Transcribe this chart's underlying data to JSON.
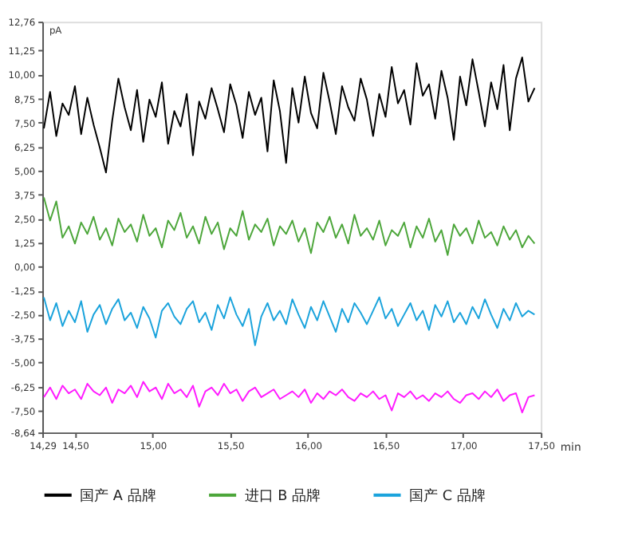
{
  "chart_data": {
    "type": "line",
    "xlabel": "min",
    "ylabel": "pA",
    "grid": false,
    "legend": "bottom",
    "marker": "none",
    "line_style": "solid",
    "x": [
      14.3,
      14.34,
      14.38,
      14.42,
      14.46,
      14.5,
      14.54,
      14.58,
      14.62,
      14.66,
      14.7,
      14.74,
      14.78,
      14.82,
      14.86,
      14.9,
      14.94,
      14.98,
      15.02,
      15.06,
      15.1,
      15.14,
      15.18,
      15.22,
      15.26,
      15.3,
      15.34,
      15.38,
      15.42,
      15.46,
      15.5,
      15.54,
      15.58,
      15.62,
      15.66,
      15.7,
      15.74,
      15.78,
      15.82,
      15.86,
      15.9,
      15.94,
      15.98,
      16.02,
      16.06,
      16.1,
      16.14,
      16.18,
      16.22,
      16.26,
      16.3,
      16.34,
      16.38,
      16.42,
      16.46,
      16.5,
      16.54,
      16.58,
      16.62,
      16.66,
      16.7,
      16.74,
      16.78,
      16.82,
      16.86,
      16.9,
      16.94,
      16.98,
      17.02,
      17.06,
      17.1,
      17.14,
      17.18,
      17.22,
      17.26,
      17.3,
      17.34,
      17.38,
      17.42,
      17.46
    ],
    "xlim": [
      14.29,
      17.5
    ],
    "xticks": [
      {
        "value": 14.29,
        "label": "14,29"
      },
      {
        "value": 14.5,
        "label": "14,50"
      },
      {
        "value": 15.0,
        "label": "15,00"
      },
      {
        "value": 15.5,
        "label": "15,50"
      },
      {
        "value": 16.0,
        "label": "16,00"
      },
      {
        "value": 16.5,
        "label": "16,50"
      },
      {
        "value": 17.0,
        "label": "17,00"
      },
      {
        "value": 17.5,
        "label": "17,50"
      }
    ],
    "ylim": [
      -8.64,
      12.76
    ],
    "yticks": [
      {
        "value": -8.64,
        "label": "-8,64"
      },
      {
        "value": -7.5,
        "label": "-7,50"
      },
      {
        "value": -6.25,
        "label": "-6,25"
      },
      {
        "value": -5.0,
        "label": "-5,00"
      },
      {
        "value": -3.75,
        "label": "-3,75"
      },
      {
        "value": -2.5,
        "label": "-2,50"
      },
      {
        "value": -1.25,
        "label": "-1,25"
      },
      {
        "value": 0,
        "label": "0,00"
      },
      {
        "value": 1.25,
        "label": "1,25"
      },
      {
        "value": 2.5,
        "label": "2,50"
      },
      {
        "value": 3.75,
        "label": "3,75"
      },
      {
        "value": 5.0,
        "label": "5,00"
      },
      {
        "value": 6.25,
        "label": "6,25"
      },
      {
        "value": 7.5,
        "label": "7,50"
      },
      {
        "value": 8.75,
        "label": "8,75"
      },
      {
        "value": 10.0,
        "label": "10,00"
      },
      {
        "value": 11.25,
        "label": "11,25"
      },
      {
        "value": 12.76,
        "label": "12,76"
      }
    ],
    "series": [
      {
        "name": "国产 A 品牌",
        "color": "#000000",
        "values": [
          7.2,
          9.1,
          6.8,
          8.5,
          7.9,
          9.4,
          6.9,
          8.8,
          7.4,
          6.2,
          4.9,
          7.6,
          9.8,
          8.3,
          7.1,
          9.2,
          6.5,
          8.7,
          7.8,
          9.6,
          6.4,
          8.1,
          7.3,
          9.0,
          5.8,
          8.6,
          7.7,
          9.3,
          8.2,
          7.0,
          9.5,
          8.4,
          6.7,
          9.1,
          7.9,
          8.8,
          6.0,
          9.7,
          8.1,
          5.4,
          9.3,
          7.5,
          9.9,
          8.0,
          7.2,
          10.1,
          8.6,
          6.9,
          9.4,
          8.3,
          7.6,
          9.8,
          8.7,
          6.8,
          9.0,
          7.8,
          10.4,
          8.5,
          9.2,
          7.4,
          10.6,
          8.9,
          9.5,
          7.7,
          10.2,
          8.8,
          6.6,
          9.9,
          8.4,
          10.8,
          9.1,
          7.3,
          9.6,
          8.2,
          10.5,
          7.1,
          9.8,
          10.9,
          8.6,
          9.3
        ]
      },
      {
        "name": "进口 B 品牌",
        "color": "#4ca63a",
        "values": [
          3.6,
          2.4,
          3.4,
          1.5,
          2.1,
          1.2,
          2.3,
          1.7,
          2.6,
          1.4,
          2.0,
          1.1,
          2.5,
          1.8,
          2.2,
          1.3,
          2.7,
          1.6,
          2.0,
          1.0,
          2.4,
          1.9,
          2.8,
          1.5,
          2.1,
          1.2,
          2.6,
          1.7,
          2.3,
          0.9,
          2.0,
          1.6,
          2.9,
          1.4,
          2.2,
          1.8,
          2.5,
          1.1,
          2.1,
          1.7,
          2.4,
          1.3,
          2.0,
          0.7,
          2.3,
          1.8,
          2.6,
          1.5,
          2.2,
          1.2,
          2.7,
          1.6,
          2.0,
          1.4,
          2.4,
          1.1,
          1.9,
          1.6,
          2.3,
          1.0,
          2.1,
          1.5,
          2.5,
          1.3,
          1.9,
          0.6,
          2.2,
          1.6,
          2.0,
          1.2,
          2.4,
          1.5,
          1.8,
          1.1,
          2.1,
          1.4,
          1.9,
          1.0,
          1.6,
          1.2
        ]
      },
      {
        "name": "国产 C 品牌",
        "color": "#1aa3dc",
        "values": [
          -1.6,
          -2.8,
          -1.9,
          -3.1,
          -2.3,
          -2.9,
          -1.8,
          -3.4,
          -2.5,
          -2.0,
          -3.0,
          -2.2,
          -1.7,
          -2.8,
          -2.4,
          -3.2,
          -2.1,
          -2.7,
          -3.7,
          -2.3,
          -1.9,
          -2.6,
          -3.0,
          -2.2,
          -1.8,
          -2.9,
          -2.4,
          -3.3,
          -2.0,
          -2.7,
          -1.6,
          -2.5,
          -3.1,
          -2.2,
          -4.1,
          -2.6,
          -1.9,
          -2.8,
          -2.3,
          -3.0,
          -1.7,
          -2.5,
          -3.2,
          -2.1,
          -2.8,
          -1.8,
          -2.6,
          -3.4,
          -2.2,
          -2.9,
          -1.9,
          -2.4,
          -3.0,
          -2.3,
          -1.6,
          -2.7,
          -2.2,
          -3.1,
          -2.5,
          -1.9,
          -2.8,
          -2.3,
          -3.3,
          -2.0,
          -2.6,
          -1.8,
          -2.9,
          -2.4,
          -3.0,
          -2.1,
          -2.7,
          -1.7,
          -2.5,
          -3.2,
          -2.2,
          -2.8,
          -1.9,
          -2.6,
          -2.3,
          -2.5
        ]
      },
      {
        "color": "#ff1aff",
        "values": [
          -6.8,
          -6.3,
          -6.9,
          -6.2,
          -6.6,
          -6.4,
          -6.9,
          -6.1,
          -6.5,
          -6.7,
          -6.3,
          -7.1,
          -6.4,
          -6.6,
          -6.2,
          -6.8,
          -6.0,
          -6.5,
          -6.3,
          -6.9,
          -6.1,
          -6.6,
          -6.4,
          -6.8,
          -6.2,
          -7.3,
          -6.5,
          -6.3,
          -6.7,
          -6.1,
          -6.6,
          -6.4,
          -7.0,
          -6.5,
          -6.3,
          -6.8,
          -6.6,
          -6.4,
          -6.9,
          -6.7,
          -6.5,
          -6.8,
          -6.4,
          -7.1,
          -6.6,
          -6.9,
          -6.5,
          -6.7,
          -6.4,
          -6.8,
          -7.0,
          -6.6,
          -6.8,
          -6.5,
          -6.9,
          -6.7,
          -7.5,
          -6.6,
          -6.8,
          -6.5,
          -6.9,
          -6.7,
          -7.0,
          -6.6,
          -6.8,
          -6.5,
          -6.9,
          -7.1,
          -6.7,
          -6.6,
          -6.9,
          -6.5,
          -6.8,
          -6.4,
          -7.0,
          -6.7,
          -6.6,
          -7.6,
          -6.8,
          -6.7
        ]
      }
    ]
  }
}
